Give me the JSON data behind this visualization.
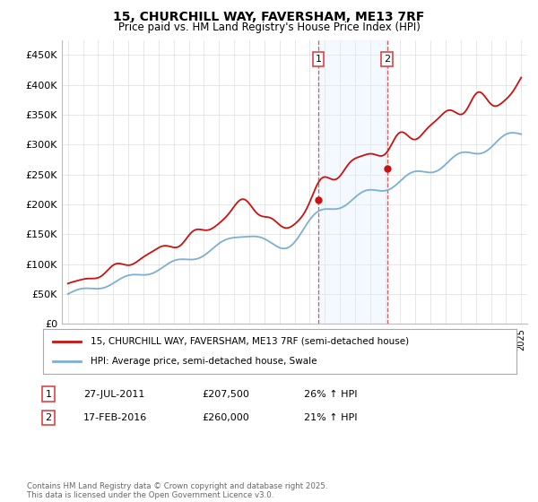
{
  "title": "15, CHURCHILL WAY, FAVERSHAM, ME13 7RF",
  "subtitle": "Price paid vs. HM Land Registry's House Price Index (HPI)",
  "ylim": [
    0,
    475000
  ],
  "yticks": [
    0,
    50000,
    100000,
    150000,
    200000,
    250000,
    300000,
    350000,
    400000,
    450000
  ],
  "ytick_labels": [
    "£0",
    "£50K",
    "£100K",
    "£150K",
    "£200K",
    "£250K",
    "£300K",
    "£350K",
    "£400K",
    "£450K"
  ],
  "hpi_color": "#7bafd4",
  "price_color": "#cc1111",
  "shade_color": "#ddeeff",
  "vline_color": "#dd4444",
  "sale1_year": 2011.58,
  "sale2_year": 2016.12,
  "sale1_price": 207500,
  "sale2_price": 260000,
  "sale1": {
    "label": "1",
    "date": "27-JUL-2011",
    "price": "£207,500",
    "hpi": "26% ↑ HPI"
  },
  "sale2": {
    "label": "2",
    "date": "17-FEB-2016",
    "price": "£260,000",
    "hpi": "21% ↑ HPI"
  },
  "legend_line1": "15, CHURCHILL WAY, FAVERSHAM, ME13 7RF (semi-detached house)",
  "legend_line2": "HPI: Average price, semi-detached house, Swale",
  "footnote": "Contains HM Land Registry data © Crown copyright and database right 2025.\nThis data is licensed under the Open Government Licence v3.0.",
  "background_color": "#ffffff",
  "grid_color": "#dddddd"
}
